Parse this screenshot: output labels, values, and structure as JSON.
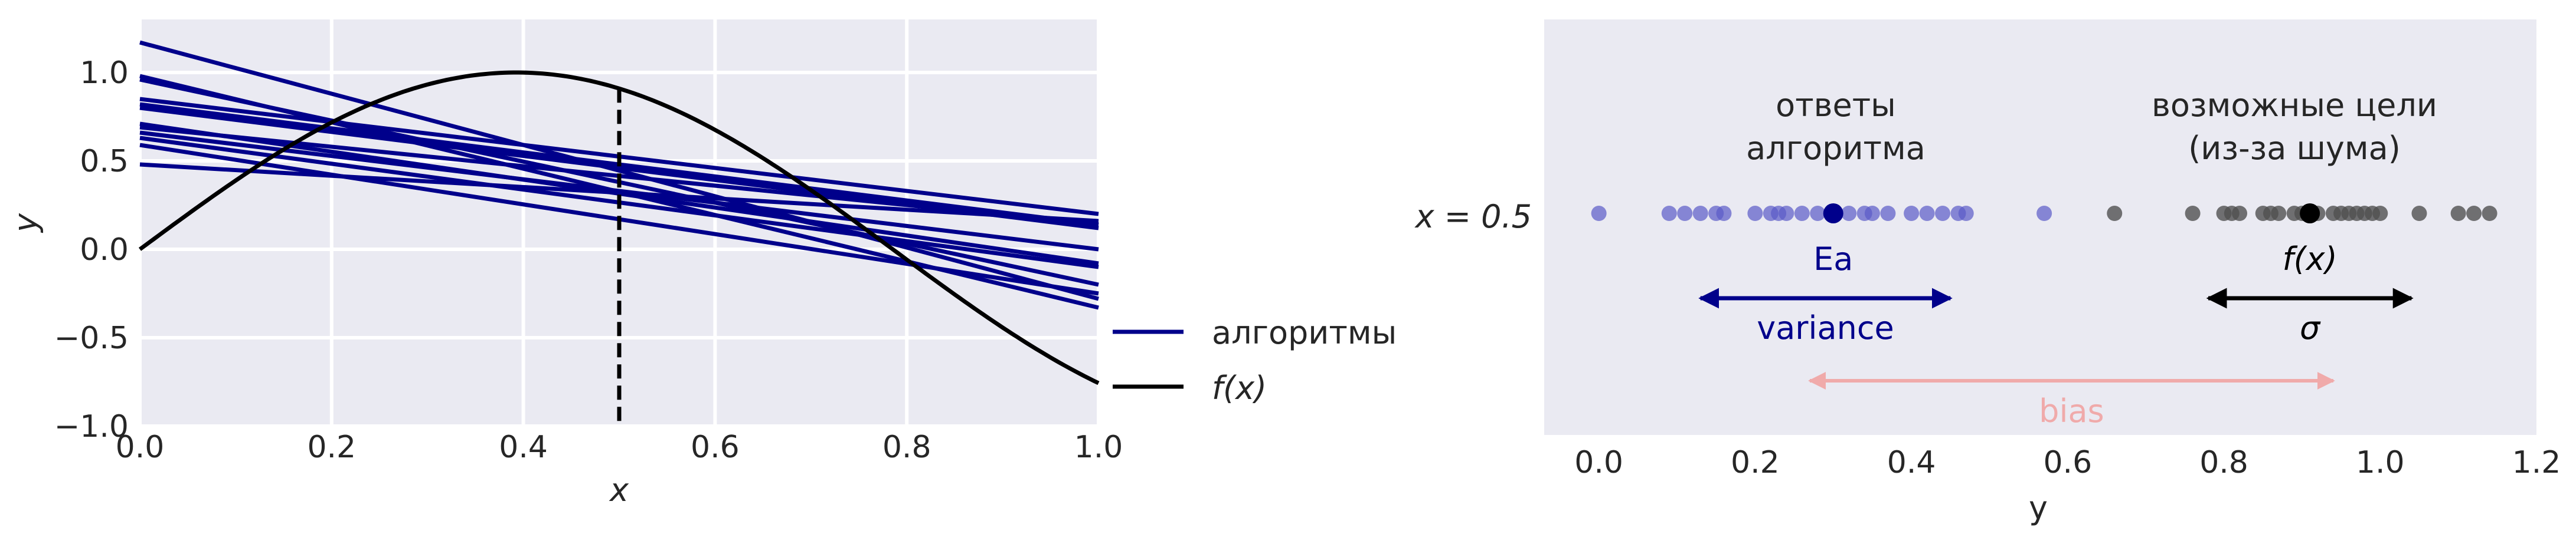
{
  "colors": {
    "panel_bg": "#eaeaf2",
    "grid": "#ffffff",
    "algorithm": "#00008b",
    "target": "#000000",
    "variance_points": "#5a5ac8",
    "target_points": "#505050",
    "bias": "#f0aaaa",
    "text": "#262626"
  },
  "chart_data": [
    {
      "type": "line",
      "xlabel": "x",
      "ylabel": "y",
      "xlim": [
        0.0,
        1.0
      ],
      "ylim": [
        -1.0,
        1.3
      ],
      "x_ticks": [
        "0.0",
        "0.2",
        "0.4",
        "0.6",
        "0.8",
        "1.0"
      ],
      "y_ticks": [
        "−1.0",
        "−0.5",
        "0.0",
        "0.5",
        "1.0"
      ],
      "grid": true,
      "legend_position": "outside-right",
      "legend": [
        "алгоритмы",
        "f(x)"
      ],
      "series": [
        {
          "name": "алгоритмы",
          "lines": [
            [
              1.17,
              -0.28
            ],
            [
              0.98,
              -0.33
            ],
            [
              0.96,
              -0.2
            ],
            [
              0.85,
              0.2
            ],
            [
              0.82,
              0.14
            ],
            [
              0.8,
              0.12
            ],
            [
              0.71,
              -0.08
            ],
            [
              0.69,
              0.14
            ],
            [
              0.66,
              0.0
            ],
            [
              0.63,
              -0.1
            ],
            [
              0.59,
              -0.25
            ],
            [
              0.48,
              0.16
            ]
          ]
        },
        {
          "name": "f(x)",
          "function": "sin(4x)",
          "x_range": [
            0.0,
            1.0
          ]
        }
      ],
      "vertical_marker": {
        "x": 0.5,
        "style": "dashed"
      }
    },
    {
      "type": "scatter",
      "xlabel": "y",
      "xlim": [
        -0.07,
        1.2
      ],
      "x_ticks": [
        "0.0",
        "0.2",
        "0.4",
        "0.6",
        "0.8",
        "1.0",
        "1.2"
      ],
      "row_label": "x = 0.5",
      "grid": false,
      "series": [
        {
          "name": "ответы алгоритма",
          "mean": 0.3,
          "mean_label": "Ea",
          "spread_label": "variance",
          "spread": [
            0.13,
            0.45
          ],
          "values": [
            0.0,
            0.09,
            0.11,
            0.13,
            0.15,
            0.16,
            0.2,
            0.22,
            0.23,
            0.24,
            0.26,
            0.28,
            0.3,
            0.32,
            0.34,
            0.35,
            0.37,
            0.4,
            0.42,
            0.44,
            0.46,
            0.47,
            0.57
          ]
        },
        {
          "name": "возможные цели (из-за шума)",
          "mean": 0.91,
          "mean_label": "f(x)",
          "spread_label": "σ",
          "spread": [
            0.78,
            1.04
          ],
          "values": [
            0.66,
            0.76,
            0.8,
            0.81,
            0.82,
            0.85,
            0.86,
            0.87,
            0.89,
            0.9,
            0.92,
            0.94,
            0.95,
            0.96,
            0.97,
            0.98,
            0.99,
            1.0,
            1.05,
            1.1,
            1.12,
            1.14
          ]
        }
      ],
      "bias_arrow": {
        "from": 0.27,
        "to": 0.94,
        "label": "bias"
      },
      "annotations": {
        "algorithm_answers": [
          "ответы",
          "алгоритма"
        ],
        "possible_targets": [
          "возможные цели",
          "(из-за шума)"
        ]
      }
    }
  ]
}
